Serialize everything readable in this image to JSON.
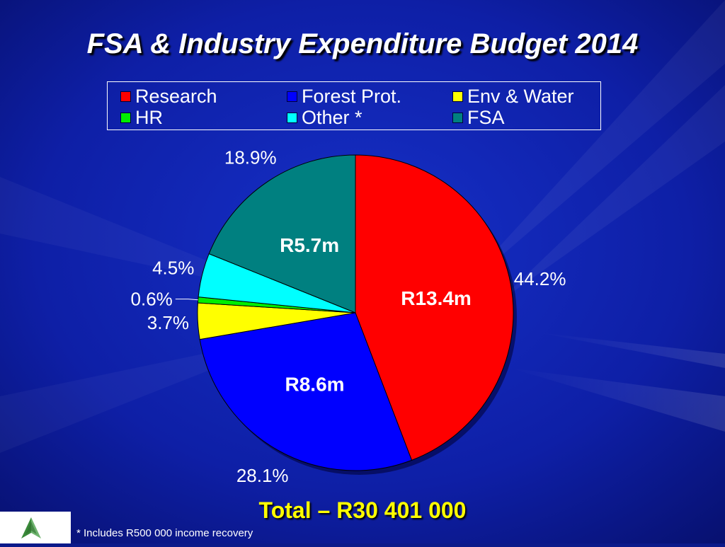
{
  "title": "FSA & Industry Expenditure Budget 2014",
  "total": "Total – R30 401 000",
  "footnote": "* Includes R500 000 income recovery",
  "logo": {
    "icon": "tree-logo-icon",
    "color": "#3a8a3a"
  },
  "chart_data": {
    "type": "pie",
    "legend": "top",
    "slices": [
      {
        "name": "Research",
        "percent": 44.2,
        "pct_label": "44.2%",
        "amount_label": "R13.4m",
        "color": "#ff0000"
      },
      {
        "name": "Forest Prot.",
        "percent": 28.1,
        "pct_label": "28.1%",
        "amount_label": "R8.6m",
        "color": "#0000ff"
      },
      {
        "name": "Env & Water",
        "percent": 3.7,
        "pct_label": "3.7%",
        "amount_label": "",
        "color": "#ffff00"
      },
      {
        "name": "HR",
        "percent": 0.6,
        "pct_label": "0.6%",
        "amount_label": "",
        "color": "#00ee00"
      },
      {
        "name": "Other *",
        "percent": 4.5,
        "pct_label": "4.5%",
        "amount_label": "",
        "color": "#00ffff"
      },
      {
        "name": "FSA",
        "percent": 18.9,
        "pct_label": "18.9%",
        "amount_label": "R5.7m",
        "color": "#008080"
      }
    ]
  }
}
